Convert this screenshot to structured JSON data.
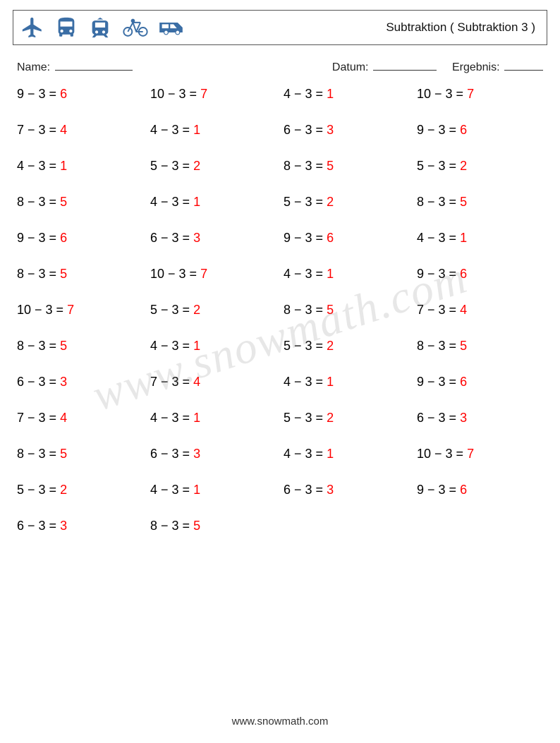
{
  "title": "Subtraktion ( Subtraktion 3 )",
  "labels": {
    "name": "Name:",
    "date": "Datum:",
    "result": "Ergebnis:"
  },
  "colors": {
    "text": "#000000",
    "answer": "#ff0000",
    "icon": "#3b6ea5",
    "background": "#ffffff",
    "watermark": "rgba(120,120,120,0.18)"
  },
  "fontsize": {
    "title": 17,
    "problems": 18,
    "labels": 16
  },
  "grid": {
    "columns": 4,
    "rows": 13,
    "row_gap": 30
  },
  "icons": [
    "airplane-icon",
    "bus-icon",
    "tram-icon",
    "bicycle-icon",
    "van-icon"
  ],
  "problems": [
    [
      {
        "a": 9,
        "b": 3,
        "r": 6
      },
      {
        "a": 10,
        "b": 3,
        "r": 7
      },
      {
        "a": 4,
        "b": 3,
        "r": 1
      },
      {
        "a": 10,
        "b": 3,
        "r": 7
      }
    ],
    [
      {
        "a": 7,
        "b": 3,
        "r": 4
      },
      {
        "a": 4,
        "b": 3,
        "r": 1
      },
      {
        "a": 6,
        "b": 3,
        "r": 3
      },
      {
        "a": 9,
        "b": 3,
        "r": 6
      }
    ],
    [
      {
        "a": 4,
        "b": 3,
        "r": 1
      },
      {
        "a": 5,
        "b": 3,
        "r": 2
      },
      {
        "a": 8,
        "b": 3,
        "r": 5
      },
      {
        "a": 5,
        "b": 3,
        "r": 2
      }
    ],
    [
      {
        "a": 8,
        "b": 3,
        "r": 5
      },
      {
        "a": 4,
        "b": 3,
        "r": 1
      },
      {
        "a": 5,
        "b": 3,
        "r": 2
      },
      {
        "a": 8,
        "b": 3,
        "r": 5
      }
    ],
    [
      {
        "a": 9,
        "b": 3,
        "r": 6
      },
      {
        "a": 6,
        "b": 3,
        "r": 3
      },
      {
        "a": 9,
        "b": 3,
        "r": 6
      },
      {
        "a": 4,
        "b": 3,
        "r": 1
      }
    ],
    [
      {
        "a": 8,
        "b": 3,
        "r": 5
      },
      {
        "a": 10,
        "b": 3,
        "r": 7
      },
      {
        "a": 4,
        "b": 3,
        "r": 1
      },
      {
        "a": 9,
        "b": 3,
        "r": 6
      }
    ],
    [
      {
        "a": 10,
        "b": 3,
        "r": 7
      },
      {
        "a": 5,
        "b": 3,
        "r": 2
      },
      {
        "a": 8,
        "b": 3,
        "r": 5
      },
      {
        "a": 7,
        "b": 3,
        "r": 4
      }
    ],
    [
      {
        "a": 8,
        "b": 3,
        "r": 5
      },
      {
        "a": 4,
        "b": 3,
        "r": 1
      },
      {
        "a": 5,
        "b": 3,
        "r": 2
      },
      {
        "a": 8,
        "b": 3,
        "r": 5
      }
    ],
    [
      {
        "a": 6,
        "b": 3,
        "r": 3
      },
      {
        "a": 7,
        "b": 3,
        "r": 4
      },
      {
        "a": 4,
        "b": 3,
        "r": 1
      },
      {
        "a": 9,
        "b": 3,
        "r": 6
      }
    ],
    [
      {
        "a": 7,
        "b": 3,
        "r": 4
      },
      {
        "a": 4,
        "b": 3,
        "r": 1
      },
      {
        "a": 5,
        "b": 3,
        "r": 2
      },
      {
        "a": 6,
        "b": 3,
        "r": 3
      }
    ],
    [
      {
        "a": 8,
        "b": 3,
        "r": 5
      },
      {
        "a": 6,
        "b": 3,
        "r": 3
      },
      {
        "a": 4,
        "b": 3,
        "r": 1
      },
      {
        "a": 10,
        "b": 3,
        "r": 7
      }
    ],
    [
      {
        "a": 5,
        "b": 3,
        "r": 2
      },
      {
        "a": 4,
        "b": 3,
        "r": 1
      },
      {
        "a": 6,
        "b": 3,
        "r": 3
      },
      {
        "a": 9,
        "b": 3,
        "r": 6
      }
    ],
    [
      {
        "a": 6,
        "b": 3,
        "r": 3
      },
      {
        "a": 8,
        "b": 3,
        "r": 5
      }
    ]
  ],
  "watermark": "www.snowmath.com",
  "footer": "www.snowmath.com"
}
